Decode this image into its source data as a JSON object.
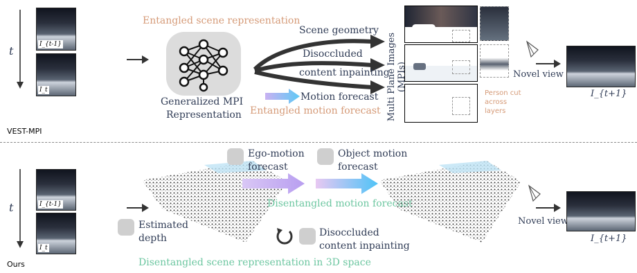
{
  "top": {
    "time_label": "t",
    "frame_labels": [
      "I_{t-1}",
      "I_t"
    ],
    "title_entangled_scene": "Entangled scene representation",
    "network_label_line1": "Generalized MPI",
    "network_label_line2": "Representation",
    "arrow_labels": [
      "Scene geometry",
      "Disoccluded",
      "content inpainting",
      "Motion forecast"
    ],
    "entangled_motion": "Entangled motion forecast",
    "mpi_label": "Multi Plane Images (MPIs)",
    "person_cut": [
      "Person cut",
      "across",
      "layers"
    ],
    "novel_view": "Novel view",
    "output_label": "I_{t+1}",
    "method_label": "VEST-MPI"
  },
  "bottom": {
    "time_label": "t",
    "frame_labels": [
      "I_{t-1}",
      "I_t"
    ],
    "estimated_depth": [
      "Estimated",
      "depth"
    ],
    "ego_motion": [
      "Ego-motion",
      "forecast"
    ],
    "object_motion": [
      "Object motion",
      "forecast"
    ],
    "disentangled_motion": "Disentangled motion forecast",
    "disoccluded": [
      "Disoccluded",
      "content inpainting"
    ],
    "disentangled_scene": "Disentangled scene representation in 3D space",
    "novel_view": "Novel view",
    "output_label": "I_{t+1}",
    "method_label": "Ours"
  },
  "colors": {
    "navy": "#2f3b55",
    "orange": "#d59a77",
    "green": "#6cc6a0",
    "arrow_dark": "#333333",
    "gradient_start": "#b9a2f0",
    "gradient_end": "#4fc3f7"
  },
  "icons": [
    "network-icon",
    "camera-icon",
    "rotate-arrow-icon"
  ]
}
